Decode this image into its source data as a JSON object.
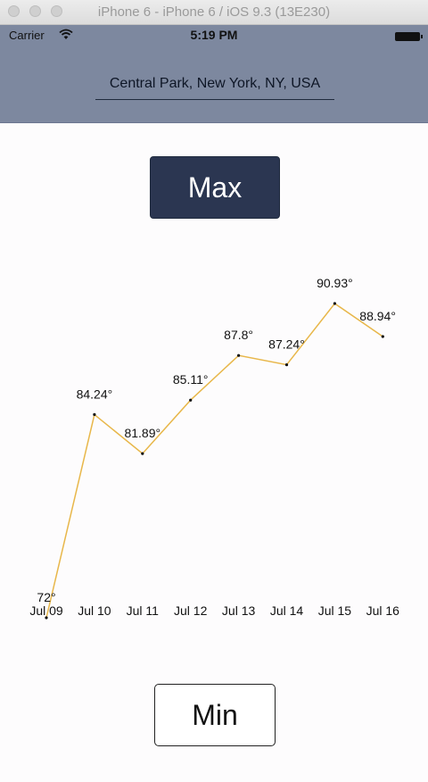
{
  "window": {
    "title": "iPhone 6 - iPhone 6 / iOS 9.3 (13E230)"
  },
  "status_bar": {
    "carrier": "Carrier",
    "time": "5:19 PM"
  },
  "header": {
    "location": "Central Park, New York, NY, USA"
  },
  "buttons": {
    "max_label": "Max",
    "min_label": "Min"
  },
  "colors": {
    "nav_background": "#7d889f",
    "max_button": "#2b3651",
    "line": "#e8b74a"
  },
  "chart_data": {
    "type": "line",
    "categories": [
      "Jul 09",
      "Jul 10",
      "Jul 11",
      "Jul 12",
      "Jul 13",
      "Jul 14",
      "Jul 15",
      "Jul 16"
    ],
    "values": [
      72,
      84.24,
      81.89,
      85.11,
      87.8,
      87.24,
      90.93,
      88.94
    ],
    "labels": [
      "72°",
      "84.24°",
      "81.89°",
      "85.11°",
      "87.8°",
      "87.24°",
      "90.93°",
      "88.94°"
    ],
    "ylim": [
      72,
      90.93
    ],
    "grid": false
  }
}
